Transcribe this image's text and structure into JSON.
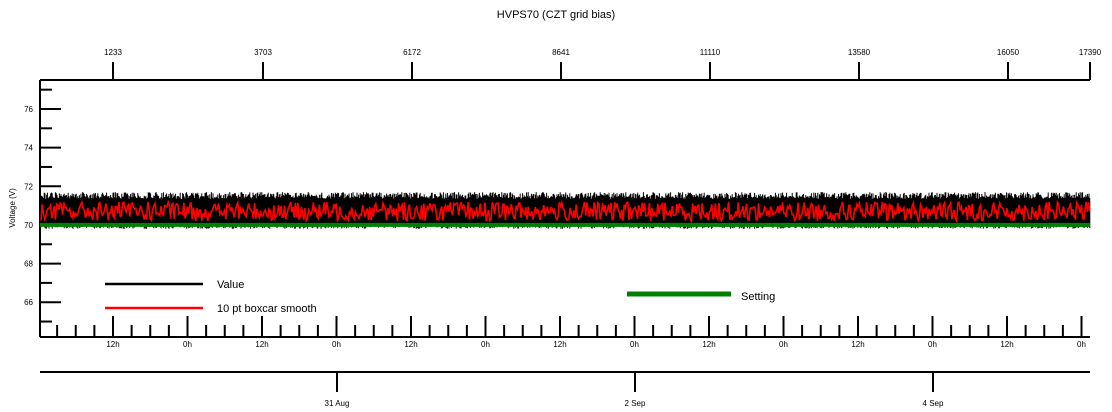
{
  "chart_data": {
    "type": "line",
    "title": "HVPS70 (CZT grid bias)",
    "ylabel": "Voltage (V)",
    "xlabel": "",
    "ylim": [
      64.2,
      77.5
    ],
    "y_ticks": [
      66,
      68,
      70,
      72,
      74,
      76
    ],
    "top_axis": {
      "labels": [
        "1233",
        "3703",
        "6172",
        "8641",
        "11110",
        "13580",
        "16050",
        "17390"
      ]
    },
    "bottom_axis_hours": {
      "labels": [
        "12h",
        "0h",
        "12h",
        "0h",
        "12h",
        "0h",
        "12h",
        "0h",
        "12h",
        "0h",
        "12h",
        "0h",
        "12h",
        "0h",
        "12h",
        "0h"
      ]
    },
    "bottom_axis_dates": {
      "labels": [
        "31 Aug",
        "2 Sep",
        "4 Sep"
      ]
    },
    "series": [
      {
        "name": "Value",
        "color": "#000000",
        "min": 69.8,
        "max": 71.7,
        "typical": 70.6
      },
      {
        "name": "10 pt boxcar smooth",
        "color": "#ff0000",
        "min": 70.2,
        "max": 71.3,
        "typical": 70.7
      },
      {
        "name": "Setting",
        "color": "#008000",
        "value": 70.0
      }
    ],
    "legend": {
      "entries": [
        {
          "label": "Value",
          "color": "#000000"
        },
        {
          "label": "10 pt boxcar smooth",
          "color": "#ff0000"
        },
        {
          "label": "Setting",
          "color": "#008000"
        }
      ]
    }
  }
}
